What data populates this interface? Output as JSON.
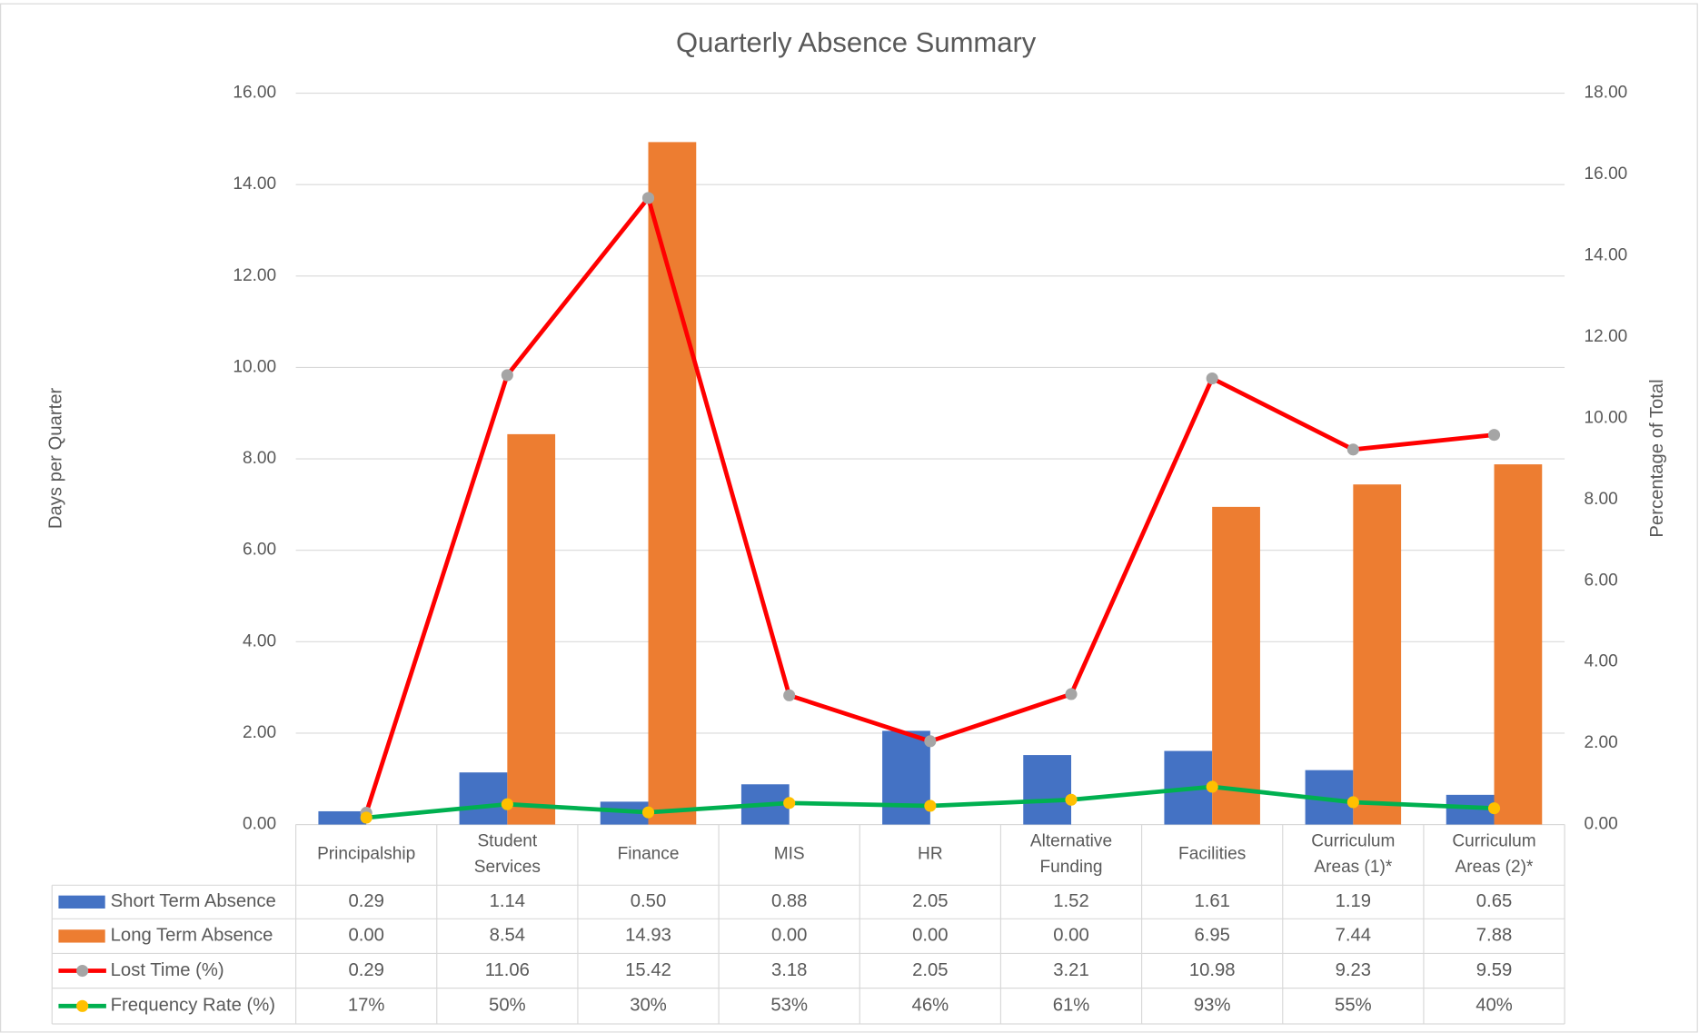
{
  "chart_data": {
    "type": "bar_line_table",
    "title": "Quarterly Absence Summary",
    "y_label": "Days per Quarter",
    "y2_label": "Percentage of Total",
    "categories": [
      "Principalship",
      "Student Services",
      "Finance",
      "MIS",
      "HR",
      "Alternative Funding",
      "Facilities",
      "Curriculum Areas (1)*",
      "Curriculum Areas (2)*"
    ],
    "series": [
      {
        "name": "Short Term Absence",
        "type": "bar",
        "color": "#4472c4",
        "axis": "y",
        "values": [
          0.29,
          1.14,
          0.5,
          0.88,
          2.05,
          1.52,
          1.61,
          1.19,
          0.65
        ],
        "value_labels": [
          "0.29",
          "1.14",
          "0.50",
          "0.88",
          "2.05",
          "1.52",
          "1.61",
          "1.19",
          "0.65"
        ]
      },
      {
        "name": "Long Term Absence",
        "type": "bar",
        "color": "#ed7d31",
        "axis": "y",
        "values": [
          0,
          8.54,
          14.93,
          0,
          0,
          0,
          6.95,
          7.44,
          7.88
        ],
        "value_labels": [
          "0.00",
          "8.54",
          "14.93",
          "0.00",
          "0.00",
          "0.00",
          "6.95",
          "7.44",
          "7.88"
        ]
      },
      {
        "name": "Lost Time (%)",
        "type": "line",
        "color": "#ff0000",
        "marker_color": "#a5a5a5",
        "axis": "y2",
        "values": [
          0.29,
          11.06,
          15.42,
          3.18,
          2.05,
          3.21,
          10.98,
          9.23,
          9.59
        ],
        "value_labels": [
          "0.29",
          "11.06",
          "15.42",
          "3.18",
          "2.05",
          "3.21",
          "10.98",
          "9.23",
          "9.59"
        ]
      },
      {
        "name": "Frequency Rate (%)",
        "type": "line",
        "color": "#00b050",
        "marker_color": "#ffc000",
        "axis": "y2",
        "values": [
          0.17,
          0.5,
          0.3,
          0.53,
          0.46,
          0.61,
          0.93,
          0.55,
          0.4
        ],
        "value_labels": [
          "17%",
          "50%",
          "30%",
          "53%",
          "46%",
          "61%",
          "93%",
          "55%",
          "40%"
        ]
      }
    ],
    "ylim": [
      0,
      16
    ],
    "yticks": [
      {
        "value": 0,
        "label": "0.00"
      },
      {
        "value": 2,
        "label": "2.00"
      },
      {
        "value": 4,
        "label": "4.00"
      },
      {
        "value": 6,
        "label": "6.00"
      },
      {
        "value": 8,
        "label": "8.00"
      },
      {
        "value": 10,
        "label": "10.00"
      },
      {
        "value": 12,
        "label": "12.00"
      },
      {
        "value": 14,
        "label": "14.00"
      },
      {
        "value": 16,
        "label": "16.00"
      }
    ],
    "y2lim": [
      0,
      18
    ],
    "y2ticks": [
      {
        "value": 0,
        "label": "0.00"
      },
      {
        "value": 2,
        "label": "2.00"
      },
      {
        "value": 4,
        "label": "4.00"
      },
      {
        "value": 6,
        "label": "6.00"
      },
      {
        "value": 8,
        "label": "8.00"
      },
      {
        "value": 10,
        "label": "10.00"
      },
      {
        "value": 12,
        "label": "12.00"
      },
      {
        "value": 14,
        "label": "14.00"
      },
      {
        "value": 16,
        "label": "16.00"
      },
      {
        "value": 18,
        "label": "18.00"
      }
    ],
    "grid": true,
    "legend": "table"
  }
}
